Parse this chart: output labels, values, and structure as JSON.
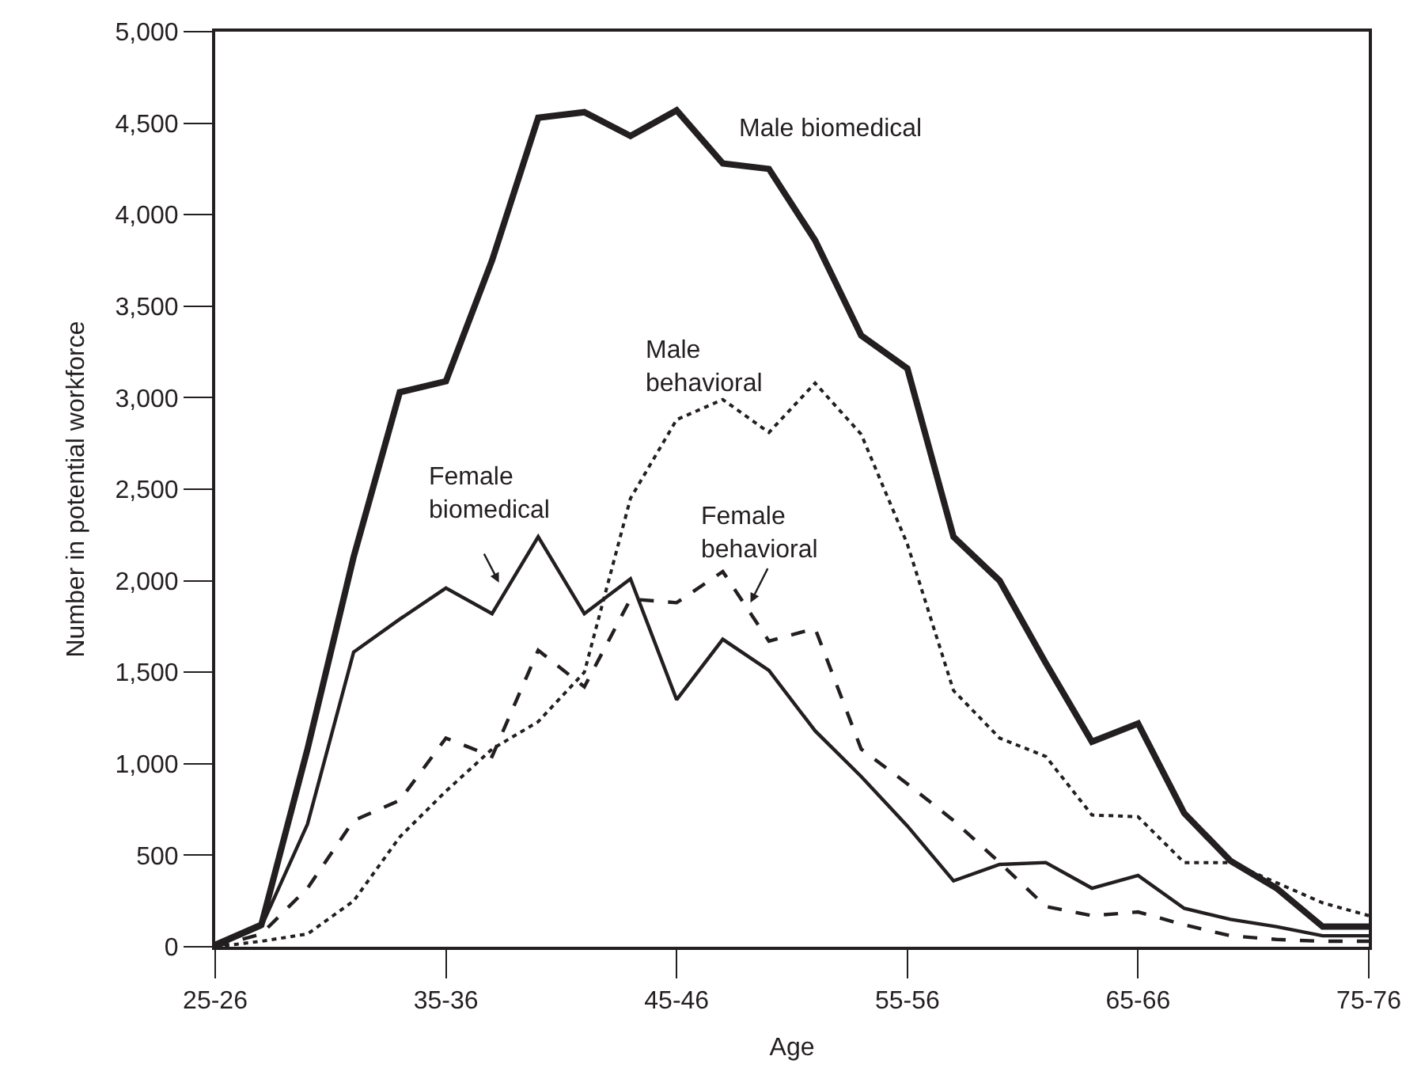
{
  "chart_data": {
    "type": "line",
    "xlabel": "Age",
    "ylabel": "Number in potential workforce",
    "categories": [
      "25-26",
      null,
      null,
      null,
      null,
      "35-36",
      null,
      null,
      null,
      null,
      "45-46",
      null,
      null,
      null,
      null,
      "55-56",
      null,
      null,
      null,
      null,
      "65-66",
      null,
      null,
      null,
      null,
      "75-76"
    ],
    "ylim": [
      0,
      5000
    ],
    "yticks": [
      {
        "value": 0,
        "label": "0"
      },
      {
        "value": 500,
        "label": "500"
      },
      {
        "value": 1000,
        "label": "1,000"
      },
      {
        "value": 1500,
        "label": "1,500"
      },
      {
        "value": 2000,
        "label": "2,000"
      },
      {
        "value": 2500,
        "label": "2,500"
      },
      {
        "value": 3000,
        "label": "3,000"
      },
      {
        "value": 3500,
        "label": "3,500"
      },
      {
        "value": 4000,
        "label": "4,000"
      },
      {
        "value": 4500,
        "label": "4,500"
      },
      {
        "value": 5000,
        "label": "5,000"
      }
    ],
    "legend": false,
    "marker": "none",
    "series": [
      {
        "name": "Male biomedical",
        "color": "#231f20",
        "line_style": "solid",
        "values": [
          10,
          120,
          1080,
          2130,
          3030,
          3090,
          3750,
          4530,
          4560,
          4430,
          4570,
          4280,
          4250,
          3860,
          3340,
          3160,
          2240,
          2000,
          1550,
          1120,
          1220,
          730,
          470,
          320,
          110,
          110
        ]
      },
      {
        "name": "Male behavioral",
        "color": "#231f20",
        "line_style": "dotted",
        "values": [
          0,
          30,
          70,
          250,
          600,
          850,
          1080,
          1230,
          1500,
          2450,
          2880,
          2990,
          2810,
          3080,
          2800,
          2200,
          1400,
          1140,
          1040,
          720,
          710,
          460,
          460,
          350,
          240,
          170
        ]
      },
      {
        "name": "Female biomedical",
        "color": "#231f20",
        "line_style": "solid",
        "values": [
          0,
          110,
          670,
          1610,
          1790,
          1960,
          1820,
          2240,
          1820,
          2010,
          1350,
          1680,
          1510,
          1180,
          930,
          660,
          360,
          450,
          460,
          320,
          390,
          210,
          150,
          110,
          60,
          60
        ]
      },
      {
        "name": "Female behavioral",
        "color": "#231f20",
        "line_style": "dashed",
        "values": [
          0,
          70,
          320,
          690,
          800,
          1140,
          1040,
          1620,
          1420,
          1900,
          1880,
          2050,
          1670,
          1740,
          1080,
          890,
          690,
          460,
          220,
          170,
          190,
          120,
          60,
          40,
          30,
          30
        ]
      }
    ]
  }
}
